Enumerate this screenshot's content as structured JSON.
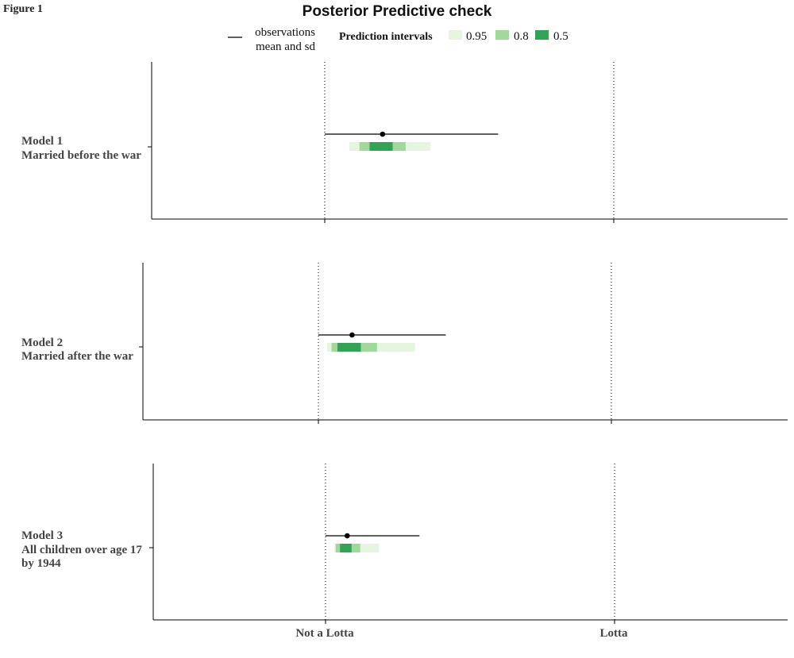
{
  "figure_label": "Figure 1",
  "chart_data": {
    "type": "interval",
    "title": "Posterior Predictive check",
    "xlabel": "",
    "ylabel": "",
    "x_tick_labels": [
      "Not a Lotta",
      "Lotta"
    ],
    "xlim": [
      -0.6,
      1.6
    ],
    "grid": "dotted vertical lines at 0 and 1",
    "legend": {
      "placement": "top",
      "observation_label_line1": "observations",
      "observation_label_line2": "mean and sd",
      "intervals_title": "Prediction intervals",
      "levels": [
        {
          "label": "0.95",
          "color": "#e5f5e0"
        },
        {
          "label": "0.8",
          "color": "#a1d99b"
        },
        {
          "label": "0.5",
          "color": "#31a354"
        }
      ]
    },
    "panels": [
      {
        "label_lines": [
          "Model 1",
          "Married before the war"
        ],
        "observed_mean": 0.2,
        "observed_sd_range": [
          0.0,
          0.6
        ],
        "intervals": {
          "0.95": [
            0.085,
            0.365
          ],
          "0.8": [
            0.12,
            0.28
          ],
          "0.5": [
            0.155,
            0.235
          ]
        }
      },
      {
        "label_lines": [
          "Model 2",
          "Married after the war"
        ],
        "observed_mean": 0.115,
        "observed_sd_range": [
          0.0,
          0.435
        ],
        "intervals": {
          "0.95": [
            0.03,
            0.33
          ],
          "0.8": [
            0.045,
            0.2
          ],
          "0.5": [
            0.065,
            0.145
          ]
        }
      },
      {
        "label_lines": [
          "Model 3",
          "All children over age 17",
          "by 1944"
        ],
        "observed_mean": 0.075,
        "observed_sd_range": [
          0.0,
          0.325
        ],
        "intervals": {
          "0.95": [
            0.03,
            0.185
          ],
          "0.8": [
            0.035,
            0.12
          ],
          "0.5": [
            0.05,
            0.09
          ]
        }
      }
    ]
  }
}
